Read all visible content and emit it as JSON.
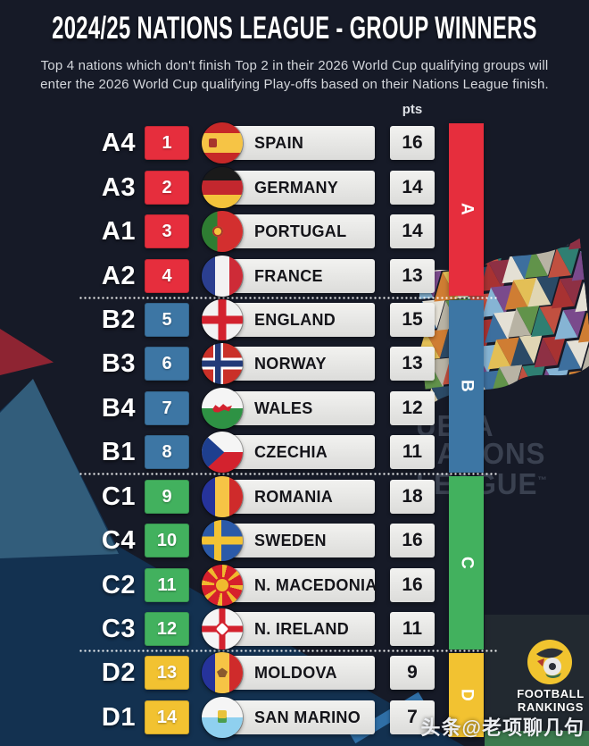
{
  "header": {
    "title": "2024/25 NATIONS LEAGUE - GROUP WINNERS",
    "subtitle_lines": [
      "Top 4 nations which don't finish Top 2 in their 2026 World Cup qualifying groups will",
      "enter the 2026 World Cup qualifying Play-offs based on their Nations League finish."
    ]
  },
  "table": {
    "pts_header": "pts",
    "groups": [
      {
        "letter": "A",
        "color": "#e62e3d",
        "rows": [
          {
            "pos": "A4",
            "rank": "1",
            "country": "SPAIN",
            "flag": "es",
            "pts": "16"
          },
          {
            "pos": "A3",
            "rank": "2",
            "country": "GERMANY",
            "flag": "de",
            "pts": "14"
          },
          {
            "pos": "A1",
            "rank": "3",
            "country": "PORTUGAL",
            "flag": "pt",
            "pts": "14"
          },
          {
            "pos": "A2",
            "rank": "4",
            "country": "FRANCE",
            "flag": "fr",
            "pts": "13"
          }
        ]
      },
      {
        "letter": "B",
        "color": "#3d76a4",
        "rows": [
          {
            "pos": "B2",
            "rank": "5",
            "country": "ENGLAND",
            "flag": "en",
            "pts": "15"
          },
          {
            "pos": "B3",
            "rank": "6",
            "country": "NORWAY",
            "flag": "no",
            "pts": "13"
          },
          {
            "pos": "B4",
            "rank": "7",
            "country": "WALES",
            "flag": "wls",
            "pts": "12"
          },
          {
            "pos": "B1",
            "rank": "8",
            "country": "CZECHIA",
            "flag": "cz",
            "pts": "11"
          }
        ]
      },
      {
        "letter": "C",
        "color": "#42b15e",
        "rows": [
          {
            "pos": "C1",
            "rank": "9",
            "country": "ROMANIA",
            "flag": "ro",
            "pts": "18"
          },
          {
            "pos": "C4",
            "rank": "10",
            "country": "SWEDEN",
            "flag": "se",
            "pts": "16"
          },
          {
            "pos": "C2",
            "rank": "11",
            "country": "N. MACEDONIA",
            "flag": "mk",
            "pts": "16"
          },
          {
            "pos": "C3",
            "rank": "12",
            "country": "N. IRELAND",
            "flag": "ni",
            "pts": "11"
          }
        ]
      },
      {
        "letter": "D",
        "color": "#f2c231",
        "rows": [
          {
            "pos": "D2",
            "rank": "13",
            "country": "MOLDOVA",
            "flag": "md",
            "pts": "9"
          },
          {
            "pos": "D1",
            "rank": "14",
            "country": "SAN MARINO",
            "flag": "sm",
            "pts": "7"
          }
        ]
      }
    ]
  },
  "chart_data": {
    "type": "table",
    "title": "2024/25 NATIONS LEAGUE - GROUP WINNERS",
    "columns": [
      "group_position",
      "rank",
      "country",
      "pts",
      "group"
    ],
    "rows": [
      [
        "A4",
        1,
        "SPAIN",
        16,
        "A"
      ],
      [
        "A3",
        2,
        "GERMANY",
        14,
        "A"
      ],
      [
        "A1",
        3,
        "PORTUGAL",
        14,
        "A"
      ],
      [
        "A2",
        4,
        "FRANCE",
        13,
        "A"
      ],
      [
        "B2",
        5,
        "ENGLAND",
        15,
        "B"
      ],
      [
        "B3",
        6,
        "NORWAY",
        13,
        "B"
      ],
      [
        "B4",
        7,
        "WALES",
        12,
        "B"
      ],
      [
        "B1",
        8,
        "CZECHIA",
        11,
        "B"
      ],
      [
        "C1",
        9,
        "ROMANIA",
        18,
        "C"
      ],
      [
        "C4",
        10,
        "SWEDEN",
        16,
        "C"
      ],
      [
        "C2",
        11,
        "N. MACEDONIA",
        16,
        "C"
      ],
      [
        "C3",
        12,
        "N. IRELAND",
        11,
        "C"
      ],
      [
        "D2",
        13,
        "MOLDOVA",
        9,
        "D"
      ],
      [
        "D1",
        14,
        "SAN MARINO",
        7,
        "D"
      ]
    ],
    "group_colors": {
      "A": "#e62e3d",
      "B": "#3d76a4",
      "C": "#42b15e",
      "D": "#f2c231"
    }
  },
  "background": {
    "brand_lines": [
      "UEFA",
      "NATIONS",
      "LEAGUE"
    ],
    "trademark": "™"
  },
  "footer": {
    "brand_line1": "FOOTBALL",
    "brand_line2": "RANKINGS"
  },
  "watermark": {
    "text": "头条@老项聊几句"
  }
}
